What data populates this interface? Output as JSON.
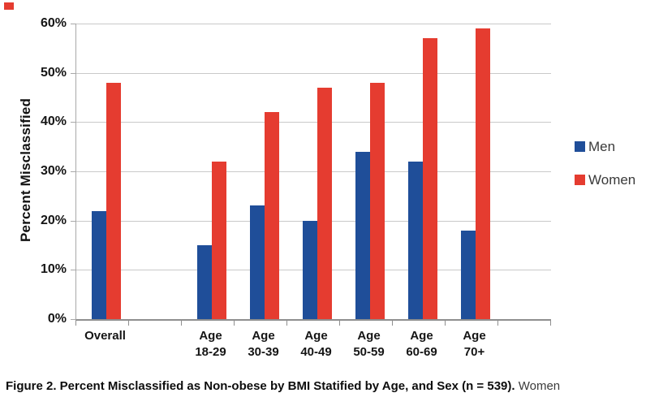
{
  "chart_data": {
    "type": "bar",
    "title": "",
    "ylabel": "Percent Misclassified",
    "xlabel": "",
    "ylim": [
      0,
      60
    ],
    "y_tick_step": 10,
    "y_tick_labels": [
      "0%",
      "10%",
      "20%",
      "30%",
      "40%",
      "50%",
      "60%"
    ],
    "grid": true,
    "legend_position": "right",
    "categories": [
      {
        "line1": "Overall",
        "line2": ""
      },
      {
        "line1": "Age",
        "line2": "18-29"
      },
      {
        "line1": "Age",
        "line2": "30-39"
      },
      {
        "line1": "Age",
        "line2": "40-49"
      },
      {
        "line1": "Age",
        "line2": "50-59"
      },
      {
        "line1": "Age",
        "line2": "60-69"
      },
      {
        "line1": "Age",
        "line2": "70+"
      }
    ],
    "series": [
      {
        "name": "Men",
        "color": "#1f4e99",
        "values": [
          22,
          15,
          23,
          20,
          34,
          32,
          18
        ]
      },
      {
        "name": "Women",
        "color": "#e53c30",
        "values": [
          48,
          32,
          42,
          47,
          48,
          57,
          59
        ]
      }
    ]
  },
  "caption": {
    "bold": "Figure 2. Percent Misclassified as Non-obese by BMI Statified by Age, and Sex (n = 539).",
    "regular": " Women"
  },
  "colors": {
    "men": "#1f4e99",
    "women": "#e53c30",
    "gridline": "#c9c9c9",
    "axis": "#8f8f8f",
    "corner_mark": "#e53c30"
  }
}
